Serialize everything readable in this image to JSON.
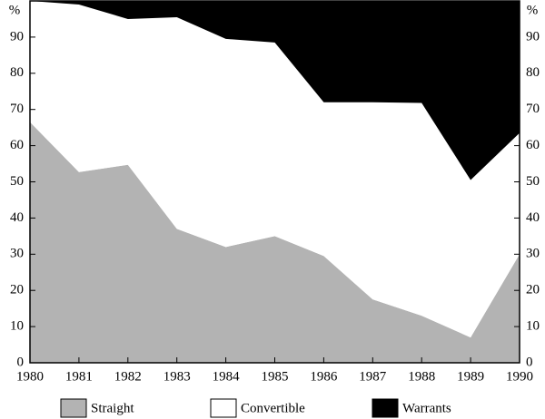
{
  "chart_data": {
    "type": "stacked_area",
    "x": [
      1980,
      1981,
      1982,
      1983,
      1984,
      1985,
      1986,
      1987,
      1988,
      1989,
      1990
    ],
    "xlim": [
      1980,
      1990
    ],
    "xticks": [
      1980,
      1981,
      1982,
      1983,
      1984,
      1985,
      1986,
      1987,
      1988,
      1989,
      1990
    ],
    "ylim": [
      0,
      100
    ],
    "yticks": [
      0,
      10,
      20,
      30,
      40,
      50,
      60,
      70,
      80,
      90
    ],
    "y2lim": [
      0,
      100
    ],
    "y2ticks": [
      0,
      10,
      20,
      30,
      40,
      50,
      60,
      70,
      80,
      90
    ],
    "y_label": "%",
    "y2_label": "%",
    "legend": "bottom",
    "series": [
      {
        "name": "Straight",
        "color": "#b3b3b3",
        "values": [
          66.5,
          52.7,
          54.7,
          37,
          32,
          35,
          29.5,
          17.5,
          13,
          7,
          30
        ]
      },
      {
        "name": "Convertible",
        "color": "#ffffff",
        "values": [
          33.5,
          46.3,
          40.3,
          58.5,
          57.5,
          53.5,
          42.5,
          54.5,
          58.8,
          43.5,
          33.5
        ]
      },
      {
        "name": "Warrants",
        "color": "#000000",
        "values": [
          0,
          1,
          5,
          4.5,
          10.5,
          11.5,
          28,
          28,
          28.2,
          49.5,
          36.5
        ]
      }
    ]
  }
}
